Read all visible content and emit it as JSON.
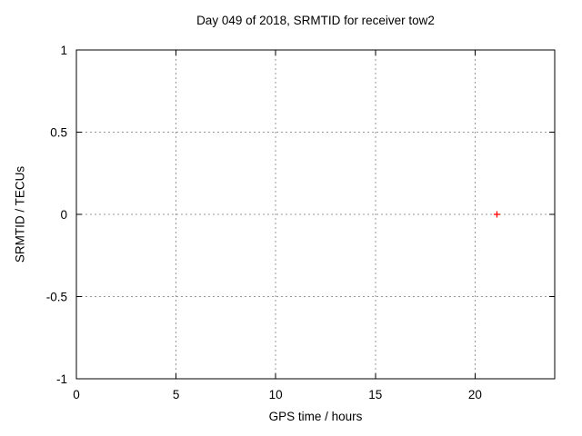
{
  "chart_data": {
    "type": "scatter",
    "title": "Day 049 of 2018, SRMTID for receiver tow2",
    "xlabel": "GPS time / hours",
    "ylabel": "SRMTID / TECUs",
    "xlim": [
      0,
      24
    ],
    "ylim": [
      -1,
      1
    ],
    "x_ticks": [
      0,
      5,
      10,
      15,
      20
    ],
    "x_tick_labels": [
      "0",
      "5",
      "10",
      "15",
      "20"
    ],
    "y_ticks": [
      -1,
      -0.5,
      0,
      0.5,
      1
    ],
    "y_tick_labels": [
      "-1",
      "-0.5",
      "0",
      "0.5",
      "1"
    ],
    "grid": true,
    "grid_style": "dashed",
    "legend_position": "none",
    "series": [
      {
        "marker": "plus",
        "color": "#ff0000",
        "points": [
          {
            "x": 21.1,
            "y": 0.0
          }
        ]
      }
    ],
    "colors": {
      "background": "#ffffff",
      "border": "#000000",
      "grid": "#999999",
      "text": "#000000"
    }
  }
}
